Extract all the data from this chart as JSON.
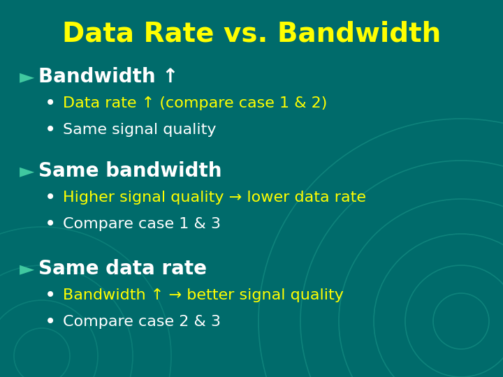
{
  "title": "Data Rate vs. Bandwidth",
  "title_color": "#FFFF00",
  "title_fontsize": 28,
  "bg_color": "#006b6b",
  "main_bullet_color": "#FFFFFF",
  "main_bullet_fontsize": 20,
  "sub_bullet_fontsize": 16,
  "bullet_marker": "►",
  "bullet_marker_color": "#40c8a0",
  "dot_color": "#FFFFFF",
  "circle_color": "#20a090",
  "sections": [
    {
      "header": "Bandwidth ↑",
      "header_color": "#FFFFFF",
      "sub_items": [
        {
          "text": "Data rate ↑ (compare case 1 & 2)",
          "color": "#FFFF00"
        },
        {
          "text": "Same signal quality",
          "color": "#FFFFFF"
        }
      ]
    },
    {
      "header": "Same bandwidth",
      "header_color": "#FFFFFF",
      "sub_items": [
        {
          "text": "Higher signal quality → lower data rate",
          "color": "#FFFF00"
        },
        {
          "text": "Compare case 1 & 3",
          "color": "#FFFFFF"
        }
      ]
    },
    {
      "header": "Same data rate",
      "header_color": "#FFFFFF",
      "sub_items": [
        {
          "text": "Bandwidth ↑ → better signal quality",
          "color": "#FFFF00"
        },
        {
          "text": "Compare case 2 & 3",
          "color": "#FFFFFF"
        }
      ]
    }
  ]
}
